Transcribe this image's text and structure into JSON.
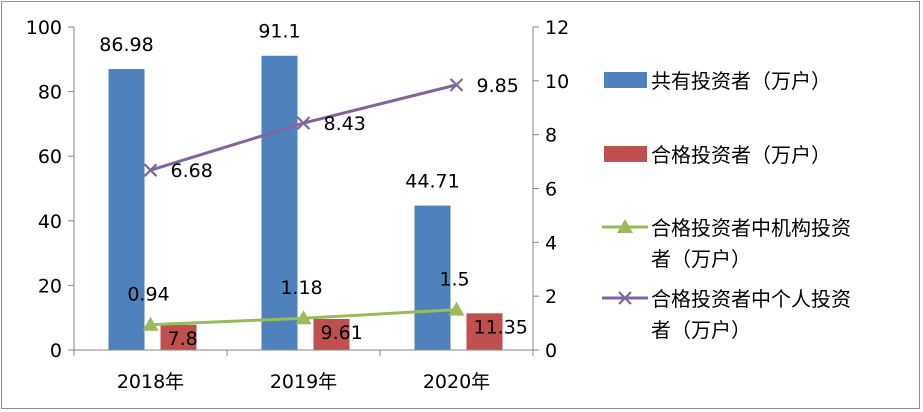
{
  "chart_data": {
    "type": "bar+line",
    "categories": [
      "2018年",
      "2019年",
      "2020年"
    ],
    "y_left": {
      "min": 0,
      "max": 100,
      "ticks": [
        0,
        20,
        40,
        60,
        80,
        100
      ]
    },
    "y_right": {
      "min": 0,
      "max": 12,
      "ticks": [
        0,
        2,
        4,
        6,
        8,
        10,
        12
      ]
    },
    "grid": false,
    "legend_position": "right",
    "series": [
      {
        "name": "共有投资者（万户）",
        "type": "bar",
        "axis": "left",
        "color": "#4f81bd",
        "values": [
          86.98,
          91.1,
          44.71
        ]
      },
      {
        "name": "合格投资者（万户）",
        "type": "bar",
        "axis": "left",
        "color": "#c0504d",
        "values": [
          7.8,
          9.61,
          11.35
        ]
      },
      {
        "name": "合格投资者中机构投资者（万户）",
        "type": "line",
        "axis": "right",
        "color": "#9bbb59",
        "marker": "triangle",
        "values": [
          0.94,
          1.18,
          1.5
        ]
      },
      {
        "name": "合格投资者中个人投资者（万户）",
        "type": "line",
        "axis": "right",
        "color": "#8064a2",
        "marker": "x",
        "values": [
          6.68,
          8.43,
          9.85
        ]
      }
    ],
    "legend": [
      {
        "lines": [
          "共有投资者（万户）"
        ]
      },
      {
        "lines": [
          "合格投资者（万户）"
        ]
      },
      {
        "lines": [
          "合格投资者中机构投资",
          "者（万户）"
        ]
      },
      {
        "lines": [
          "合格投资者中个人投资",
          "者（万户）"
        ]
      }
    ]
  }
}
